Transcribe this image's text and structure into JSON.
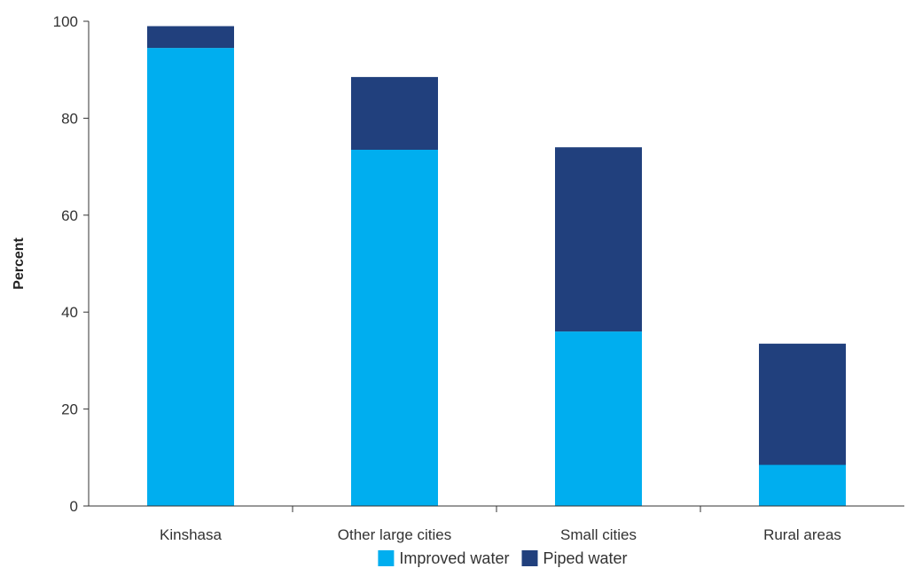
{
  "chart_data": {
    "type": "bar",
    "stacked": true,
    "title": "",
    "xlabel": "",
    "ylabel": "Percent",
    "ylim": [
      0,
      100
    ],
    "yticks": [
      0,
      20,
      40,
      60,
      80,
      100
    ],
    "grid": false,
    "legend_position": "bottom",
    "categories": [
      "Kinshasa",
      "Other large cities",
      "Small cities",
      "Rural areas"
    ],
    "series": [
      {
        "name": "Improved water",
        "values": [
          94.5,
          73.5,
          36,
          8.5
        ],
        "color": "#00AEEF"
      },
      {
        "name": "Piped water",
        "values": [
          4.5,
          15,
          38,
          25
        ],
        "color": "#21407D"
      }
    ]
  }
}
